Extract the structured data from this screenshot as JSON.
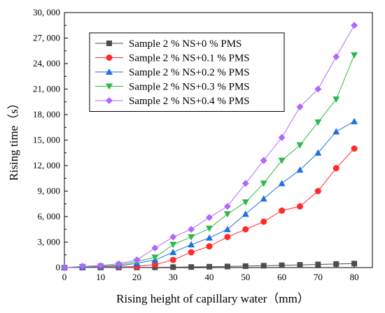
{
  "chart_data": {
    "type": "line",
    "xlabel": "Rising height of capillary water（mm）",
    "ylabel": "Rising time（s）",
    "xlim": [
      0,
      85
    ],
    "ylim": [
      0,
      30000
    ],
    "x_ticks": [
      0,
      10,
      20,
      30,
      40,
      50,
      60,
      70,
      80
    ],
    "x_tick_labels": [
      "0",
      "10",
      "20",
      "30",
      "40",
      "50",
      "60",
      "70",
      "80"
    ],
    "y_ticks": [
      0,
      3000,
      6000,
      9000,
      12000,
      15000,
      18000,
      21000,
      24000,
      27000,
      30000
    ],
    "y_tick_labels": [
      "0",
      "3, 000",
      "6, 000",
      "9, 000",
      "12, 000",
      "15, 000",
      "18, 000",
      "21, 000",
      "24, 000",
      "27, 000",
      "30, 000"
    ],
    "legend_position": "top-left",
    "grid": false,
    "x": [
      0,
      5,
      10,
      15,
      20,
      25,
      30,
      35,
      40,
      45,
      50,
      55,
      60,
      65,
      70,
      75,
      80
    ],
    "series": [
      {
        "name": "Sample 2 % NS+0 % PMS",
        "color": "#4d4d4d",
        "marker": "square",
        "values": [
          0,
          0,
          5,
          10,
          20,
          30,
          50,
          70,
          100,
          130,
          170,
          220,
          270,
          320,
          370,
          420,
          470
        ]
      },
      {
        "name": "Sample 2 % NS+0.1 % PMS",
        "color": "#ff2a2a",
        "marker": "circle",
        "values": [
          0,
          20,
          40,
          70,
          150,
          350,
          900,
          1800,
          2500,
          3600,
          4500,
          5400,
          6700,
          7200,
          9000,
          11700,
          14000
        ]
      },
      {
        "name": "Sample 2 % NS+0.2 % PMS",
        "color": "#1f6fe0",
        "marker": "triangle-up",
        "values": [
          0,
          50,
          100,
          200,
          500,
          900,
          1800,
          2700,
          3500,
          4500,
          6300,
          8100,
          9900,
          11500,
          13500,
          16000,
          17200
        ]
      },
      {
        "name": "Sample 2 % NS+0.3 % PMS",
        "color": "#2db84a",
        "marker": "triangle-down",
        "values": [
          0,
          100,
          150,
          300,
          700,
          1200,
          2700,
          3600,
          4600,
          6300,
          7700,
          9900,
          12600,
          14400,
          17100,
          19800,
          25000
        ]
      },
      {
        "name": "Sample 2 % NS+0.4 % PMS",
        "color": "#b266ff",
        "marker": "diamond",
        "values": [
          0,
          150,
          250,
          450,
          900,
          2300,
          3600,
          4500,
          5900,
          7200,
          9900,
          12600,
          15300,
          18900,
          21000,
          24800,
          28500
        ]
      }
    ]
  }
}
